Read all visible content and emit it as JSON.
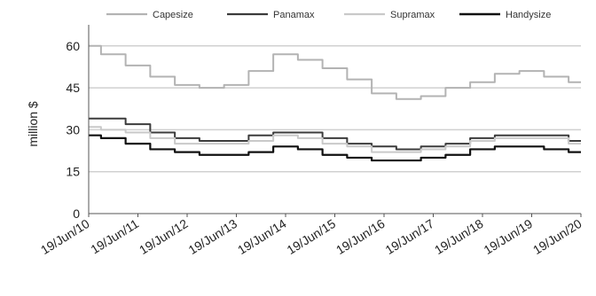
{
  "chart_data": {
    "type": "line",
    "title": "",
    "xlabel": "",
    "ylabel": "million $",
    "ylim": [
      0,
      65
    ],
    "yticks": [
      "0",
      "15",
      "30",
      "45",
      "60"
    ],
    "xtick_labels": [
      "19/Jun/10",
      "19/Jun/11",
      "19/Jun/12",
      "19/Jun/13",
      "19/Jun/14",
      "19/Jun/15",
      "19/Jun/16",
      "19/Jun/17",
      "19/Jun/18",
      "19/Jun/19",
      "19/Jun/20"
    ],
    "x_years": [
      2010,
      2010.5,
      2011,
      2011.5,
      2012,
      2012.5,
      2013,
      2013.5,
      2014,
      2014.5,
      2015,
      2015.5,
      2016,
      2016.5,
      2017,
      2017.5,
      2018,
      2018.5,
      2019,
      2019.5,
      2020
    ],
    "grid": true,
    "legend_position": "top",
    "series": [
      {
        "name": "Capesize",
        "color": "#b3b3b3",
        "width": 2,
        "values": [
          60,
          57,
          53,
          49,
          46,
          45,
          46,
          51,
          57,
          55,
          52,
          48,
          43,
          41,
          42,
          45,
          47,
          50,
          51,
          49,
          47
        ]
      },
      {
        "name": "Panamax",
        "color": "#3c3c3c",
        "width": 2,
        "values": [
          34,
          34,
          32,
          29,
          27,
          26,
          26,
          28,
          29,
          29,
          27,
          25,
          24,
          23,
          24,
          25,
          27,
          28,
          28,
          28,
          26
        ]
      },
      {
        "name": "Supramax",
        "color": "#c9c9c9",
        "width": 2,
        "values": [
          31,
          30,
          29,
          27,
          25,
          25,
          25,
          26,
          28,
          27,
          25,
          24,
          22,
          22,
          23,
          24,
          26,
          27,
          27,
          27,
          25
        ]
      },
      {
        "name": "Handysize",
        "color": "#111111",
        "width": 2.2,
        "values": [
          28,
          27,
          25,
          23,
          22,
          21,
          21,
          22,
          24,
          23,
          21,
          20,
          19,
          19,
          20,
          21,
          23,
          24,
          24,
          23,
          22
        ]
      }
    ]
  }
}
